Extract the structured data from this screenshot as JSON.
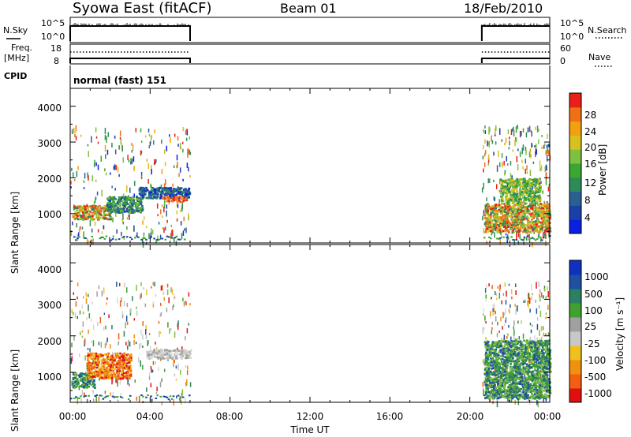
{
  "header": {
    "station": "Syowa East (fitACF)",
    "beam": "Beam 01",
    "date": "18/Feb/2010"
  },
  "nsky": {
    "label": "N.Sky",
    "ticks": [
      "10^5",
      "10^0"
    ]
  },
  "nsearch": {
    "label": "N.Search",
    "ticks": [
      "10^5",
      "10^0"
    ]
  },
  "freq": {
    "label_line1": "Freq.",
    "label_line2": "[MHz]",
    "ticks": [
      "18",
      "8"
    ]
  },
  "nave": {
    "label": "Nave",
    "ticks": [
      "60",
      "0"
    ]
  },
  "cpid": {
    "label": "CPID",
    "value": "normal (fast) 151"
  },
  "xaxis": {
    "label": "Time UT",
    "ticks": [
      "00:00",
      "04:00",
      "08:00",
      "12:00",
      "16:00",
      "20:00",
      "00:00"
    ],
    "range_hours": [
      0,
      24
    ]
  },
  "power_panel": {
    "ylabel": "Slant Range [km]",
    "yticks": [
      "4000",
      "3000",
      "2000",
      "1000"
    ]
  },
  "velocity_panel": {
    "ylabel": "Slant Range [km]",
    "yticks": [
      "4000",
      "3000",
      "2000",
      "1000"
    ]
  },
  "power_scale": {
    "label": "Power [dB]",
    "ticks": [
      "28",
      "24",
      "20",
      "16",
      "12",
      "8",
      "4"
    ],
    "colors": [
      "#0a20e0",
      "#1a40a8",
      "#2a6090",
      "#2f8a5a",
      "#3aa830",
      "#80c040",
      "#d8c020",
      "#f0a010",
      "#f07018",
      "#e82018"
    ]
  },
  "velocity_scale": {
    "label": "Velocity [m s⁻¹]",
    "ticks": [
      "1000",
      "500",
      "100",
      "25",
      "-25",
      "-100",
      "-500",
      "-1000"
    ],
    "colors": [
      "#1030c0",
      "#2050a0",
      "#2a8060",
      "#40a030",
      "#a0a0a0",
      "#c8c8c8",
      "#f0c020",
      "#f09010",
      "#f06010",
      "#e01010"
    ]
  },
  "chart_data": [
    {
      "type": "heatmap",
      "title": "Power [dB]",
      "xlabel": "Time UT",
      "ylabel": "Slant Range [km]",
      "xlim": [
        0,
        24
      ],
      "ylim": [
        180,
        4500
      ],
      "data_intervals_hours": [
        [
          0,
          6
        ],
        [
          20.6,
          24
        ]
      ],
      "blobs": [
        {
          "t0": 0.1,
          "t1": 2.0,
          "r0": 850,
          "r1": 1250,
          "level": "orange-green"
        },
        {
          "t0": 1.8,
          "t1": 3.6,
          "r0": 1050,
          "r1": 1500,
          "level": "green-blue"
        },
        {
          "t0": 3.4,
          "t1": 6.0,
          "r0": 1450,
          "r1": 1750,
          "level": "blue"
        },
        {
          "t0": 4.6,
          "t1": 5.8,
          "r0": 1350,
          "r1": 1500,
          "level": "orange"
        },
        {
          "t0": 20.7,
          "t1": 24.0,
          "r0": 500,
          "r1": 1300,
          "level": "orange-green"
        },
        {
          "t0": 21.5,
          "t1": 23.5,
          "r0": 1300,
          "r1": 2000,
          "level": "green"
        }
      ]
    },
    {
      "type": "heatmap",
      "title": "Velocity [m s⁻¹]",
      "xlabel": "Time UT",
      "ylabel": "Slant Range [km]",
      "xlim": [
        0,
        24
      ],
      "ylim": [
        180,
        4500
      ],
      "data_intervals_hours": [
        [
          0,
          6
        ],
        [
          20.6,
          24
        ]
      ],
      "blobs": [
        {
          "t0": 0.1,
          "t1": 1.2,
          "r0": 600,
          "r1": 1000,
          "level": "green"
        },
        {
          "t0": 0.8,
          "t1": 3.0,
          "r0": 850,
          "r1": 1550,
          "level": "orange"
        },
        {
          "t0": 3.8,
          "t1": 6.0,
          "r0": 1400,
          "r1": 1650,
          "level": "gray"
        },
        {
          "t0": 20.7,
          "t1": 24.0,
          "r0": 300,
          "r1": 1900,
          "level": "green"
        }
      ]
    }
  ]
}
